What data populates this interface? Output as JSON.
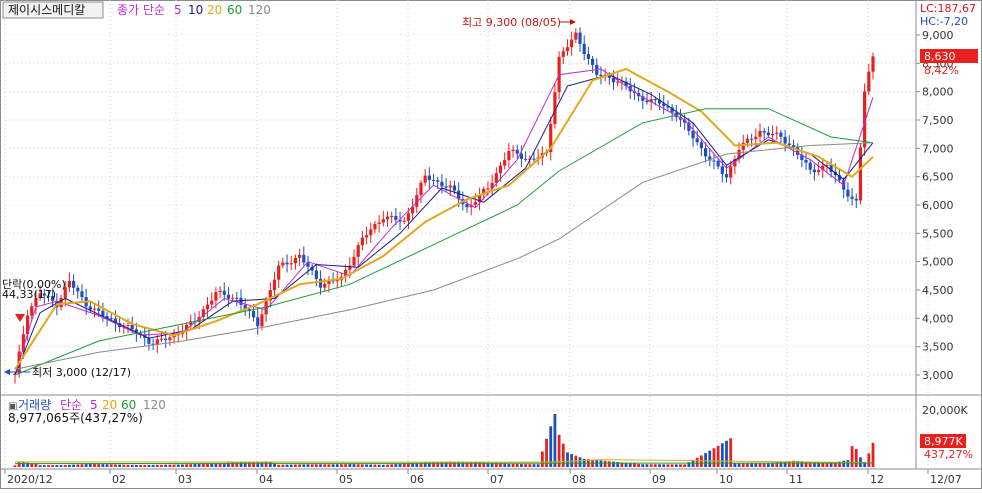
{
  "header": {
    "stock_name": "제이시스메디칼",
    "ma_label": "종가 단순",
    "ma_periods": [
      "5",
      "10",
      "20",
      "60",
      "120"
    ],
    "lc": "LC:187,67",
    "hc": "HC:-7,20"
  },
  "annotations": {
    "high": "최고 9,300 (08/05)",
    "low": "최저 3,000 (12/17)",
    "left_pct": "단락(0.00%)",
    "left_sub": "44,33(17)"
  },
  "price_panel": {
    "last_price_badge": "8,630",
    "last_change": "8,42%"
  },
  "volume_panel": {
    "label": "거래량",
    "ma_label": "단순",
    "ma_periods": [
      "5",
      "20",
      "60",
      "120"
    ],
    "summary": "8,977,065주(437,27%)",
    "axis_label": "20,000K",
    "badge": "8,977K",
    "badge_pct": "437,27%"
  },
  "colors": {
    "up": "#e8211e",
    "down": "#1f4fbf",
    "ma5": "#c02ad0",
    "ma10": "#1a1a8c",
    "ma20": "#e3a81a",
    "ma60": "#1f9a3a",
    "ma120": "#8a8a8a",
    "grid": "#d0d0d0"
  },
  "chart_data": {
    "type": "candlestick",
    "price_axis": {
      "ticks": [
        3000,
        3500,
        4000,
        4500,
        5000,
        5500,
        6000,
        6500,
        7000,
        7500,
        8000,
        8500,
        9000
      ],
      "tick_labels": [
        "3,000",
        "3,500",
        "4,000",
        "4,500",
        "5,000",
        "5,500",
        "6,000",
        "6,500",
        "7,000",
        "7,500",
        "8,000",
        "8,500",
        "9,000"
      ],
      "range": [
        2600,
        9300
      ]
    },
    "x_labels": [
      "2020/12",
      "02",
      "03",
      "04",
      "05",
      "06",
      "07",
      "08",
      "09",
      "10",
      "11",
      "12",
      "12/07"
    ],
    "price_anchors": [
      [
        0,
        3000
      ],
      [
        3,
        4100
      ],
      [
        6,
        4450
      ],
      [
        10,
        4250
      ],
      [
        13,
        4650
      ],
      [
        17,
        4250
      ],
      [
        22,
        4000
      ],
      [
        28,
        3800
      ],
      [
        33,
        3550
      ],
      [
        38,
        3700
      ],
      [
        43,
        3950
      ],
      [
        48,
        4450
      ],
      [
        53,
        4350
      ],
      [
        58,
        3900
      ],
      [
        63,
        4900
      ],
      [
        68,
        5100
      ],
      [
        73,
        4600
      ],
      [
        78,
        4700
      ],
      [
        83,
        5400
      ],
      [
        88,
        5800
      ],
      [
        93,
        5700
      ],
      [
        98,
        6500
      ],
      [
        104,
        6300
      ],
      [
        108,
        5950
      ],
      [
        113,
        6300
      ],
      [
        118,
        6950
      ],
      [
        123,
        6800
      ],
      [
        127,
        6900
      ],
      [
        130,
        8600
      ],
      [
        134,
        9000
      ],
      [
        139,
        8300
      ],
      [
        144,
        8200
      ],
      [
        149,
        7900
      ],
      [
        154,
        7800
      ],
      [
        158,
        7600
      ],
      [
        162,
        7200
      ],
      [
        166,
        6800
      ],
      [
        170,
        6500
      ],
      [
        173,
        7000
      ],
      [
        178,
        7300
      ],
      [
        183,
        7200
      ],
      [
        186,
        7000
      ],
      [
        190,
        6600
      ],
      [
        194,
        6700
      ],
      [
        198,
        6300
      ],
      [
        200,
        6100
      ],
      [
        201,
        6050
      ],
      [
        203,
        8000
      ],
      [
        205,
        8630
      ]
    ],
    "ma_series": [
      {
        "name": "5",
        "points": [
          [
            0,
            3000
          ],
          [
            5,
            4200
          ],
          [
            10,
            4300
          ],
          [
            20,
            4050
          ],
          [
            30,
            3700
          ],
          [
            40,
            3750
          ],
          [
            50,
            4350
          ],
          [
            60,
            4150
          ],
          [
            70,
            5000
          ],
          [
            80,
            4750
          ],
          [
            90,
            5600
          ],
          [
            100,
            6350
          ],
          [
            110,
            5950
          ],
          [
            120,
            6800
          ],
          [
            130,
            8300
          ],
          [
            140,
            8400
          ],
          [
            150,
            7900
          ],
          [
            160,
            7500
          ],
          [
            170,
            6650
          ],
          [
            180,
            7200
          ],
          [
            190,
            6800
          ],
          [
            198,
            6350
          ],
          [
            205,
            7900
          ]
        ]
      },
      {
        "name": "10",
        "points": [
          [
            0,
            3000
          ],
          [
            6,
            4100
          ],
          [
            12,
            4350
          ],
          [
            22,
            4000
          ],
          [
            32,
            3650
          ],
          [
            42,
            3800
          ],
          [
            52,
            4300
          ],
          [
            62,
            4350
          ],
          [
            72,
            4950
          ],
          [
            82,
            4900
          ],
          [
            92,
            5500
          ],
          [
            102,
            6300
          ],
          [
            112,
            6050
          ],
          [
            122,
            6650
          ],
          [
            132,
            8100
          ],
          [
            142,
            8300
          ],
          [
            152,
            7950
          ],
          [
            162,
            7450
          ],
          [
            170,
            6700
          ],
          [
            180,
            7150
          ],
          [
            190,
            6900
          ],
          [
            198,
            6450
          ],
          [
            205,
            7100
          ]
        ]
      },
      {
        "name": "20",
        "points": [
          [
            0,
            3100
          ],
          [
            10,
            4250
          ],
          [
            18,
            4300
          ],
          [
            28,
            3900
          ],
          [
            38,
            3700
          ],
          [
            48,
            3950
          ],
          [
            58,
            4250
          ],
          [
            68,
            4600
          ],
          [
            78,
            4700
          ],
          [
            88,
            5100
          ],
          [
            98,
            5700
          ],
          [
            108,
            6100
          ],
          [
            118,
            6350
          ],
          [
            128,
            7000
          ],
          [
            138,
            8200
          ],
          [
            146,
            8400
          ],
          [
            156,
            8000
          ],
          [
            164,
            7650
          ],
          [
            172,
            7050
          ],
          [
            182,
            7100
          ],
          [
            192,
            6850
          ],
          [
            200,
            6500
          ],
          [
            205,
            6850
          ]
        ]
      },
      {
        "name": "60",
        "points": [
          [
            0,
            3000
          ],
          [
            20,
            3600
          ],
          [
            40,
            3900
          ],
          [
            60,
            4200
          ],
          [
            80,
            4600
          ],
          [
            100,
            5300
          ],
          [
            120,
            6000
          ],
          [
            130,
            6600
          ],
          [
            150,
            7450
          ],
          [
            165,
            7700
          ],
          [
            180,
            7700
          ],
          [
            195,
            7200
          ],
          [
            205,
            7100
          ]
        ]
      },
      {
        "name": "120",
        "points": [
          [
            0,
            3100
          ],
          [
            20,
            3400
          ],
          [
            40,
            3600
          ],
          [
            60,
            3850
          ],
          [
            80,
            4150
          ],
          [
            100,
            4500
          ],
          [
            120,
            5050
          ],
          [
            130,
            5400
          ],
          [
            150,
            6400
          ],
          [
            170,
            6900
          ],
          [
            190,
            7050
          ],
          [
            205,
            7100
          ]
        ]
      }
    ],
    "volume_axis": {
      "max": 20000
    },
    "volume_anchors": [
      [
        0,
        800
      ],
      [
        1,
        2400
      ],
      [
        5,
        1500
      ],
      [
        6,
        800
      ],
      [
        12,
        800
      ],
      [
        18,
        1200
      ],
      [
        30,
        700
      ],
      [
        40,
        900
      ],
      [
        50,
        1500
      ],
      [
        60,
        2200
      ],
      [
        63,
        900
      ],
      [
        70,
        1200
      ],
      [
        80,
        1300
      ],
      [
        88,
        900
      ],
      [
        96,
        1500
      ],
      [
        104,
        2000
      ],
      [
        110,
        1700
      ],
      [
        118,
        1100
      ],
      [
        125,
        1000
      ],
      [
        129,
        19600
      ],
      [
        130,
        12000
      ],
      [
        132,
        5500
      ],
      [
        136,
        3200
      ],
      [
        142,
        2400
      ],
      [
        150,
        1300
      ],
      [
        160,
        1100
      ],
      [
        171,
        10800
      ],
      [
        172,
        1500
      ],
      [
        180,
        1500
      ],
      [
        186,
        2200
      ],
      [
        195,
        1400
      ],
      [
        199,
        2500
      ],
      [
        200,
        7500
      ],
      [
        201,
        6500
      ],
      [
        202,
        3500
      ],
      [
        203,
        1800
      ],
      [
        204,
        5000
      ],
      [
        205,
        8977
      ]
    ]
  }
}
